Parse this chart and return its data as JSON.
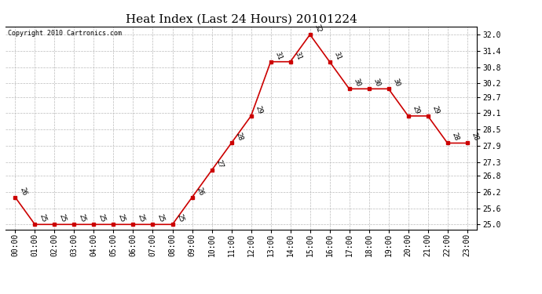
{
  "title": "Heat Index (Last 24 Hours) 20101224",
  "copyright_text": "Copyright 2010 Cartronics.com",
  "hours": [
    0,
    1,
    2,
    3,
    4,
    5,
    6,
    7,
    8,
    9,
    10,
    11,
    12,
    13,
    14,
    15,
    16,
    17,
    18,
    19,
    20,
    21,
    22,
    23
  ],
  "values": [
    26,
    25,
    25,
    25,
    25,
    25,
    25,
    25,
    25,
    26,
    27,
    28,
    29,
    31,
    31,
    32,
    31,
    30,
    30,
    30,
    29,
    29,
    28,
    28
  ],
  "x_labels": [
    "00:00",
    "01:00",
    "02:00",
    "03:00",
    "04:00",
    "05:00",
    "06:00",
    "07:00",
    "08:00",
    "09:00",
    "10:00",
    "11:00",
    "12:00",
    "13:00",
    "14:00",
    "15:00",
    "16:00",
    "17:00",
    "18:00",
    "19:00",
    "20:00",
    "21:00",
    "22:00",
    "23:00"
  ],
  "y_ticks": [
    25.0,
    25.6,
    26.2,
    26.8,
    27.3,
    27.9,
    28.5,
    29.1,
    29.7,
    30.2,
    30.8,
    31.4,
    32.0
  ],
  "ylim": [
    24.82,
    32.3
  ],
  "xlim": [
    -0.5,
    23.5
  ],
  "line_color": "#cc0000",
  "marker_color": "#cc0000",
  "grid_color": "#bbbbbb",
  "bg_color": "#ffffff",
  "plot_bg_color": "#ffffff",
  "title_fontsize": 11,
  "label_fontsize": 7,
  "annotation_fontsize": 6.5
}
